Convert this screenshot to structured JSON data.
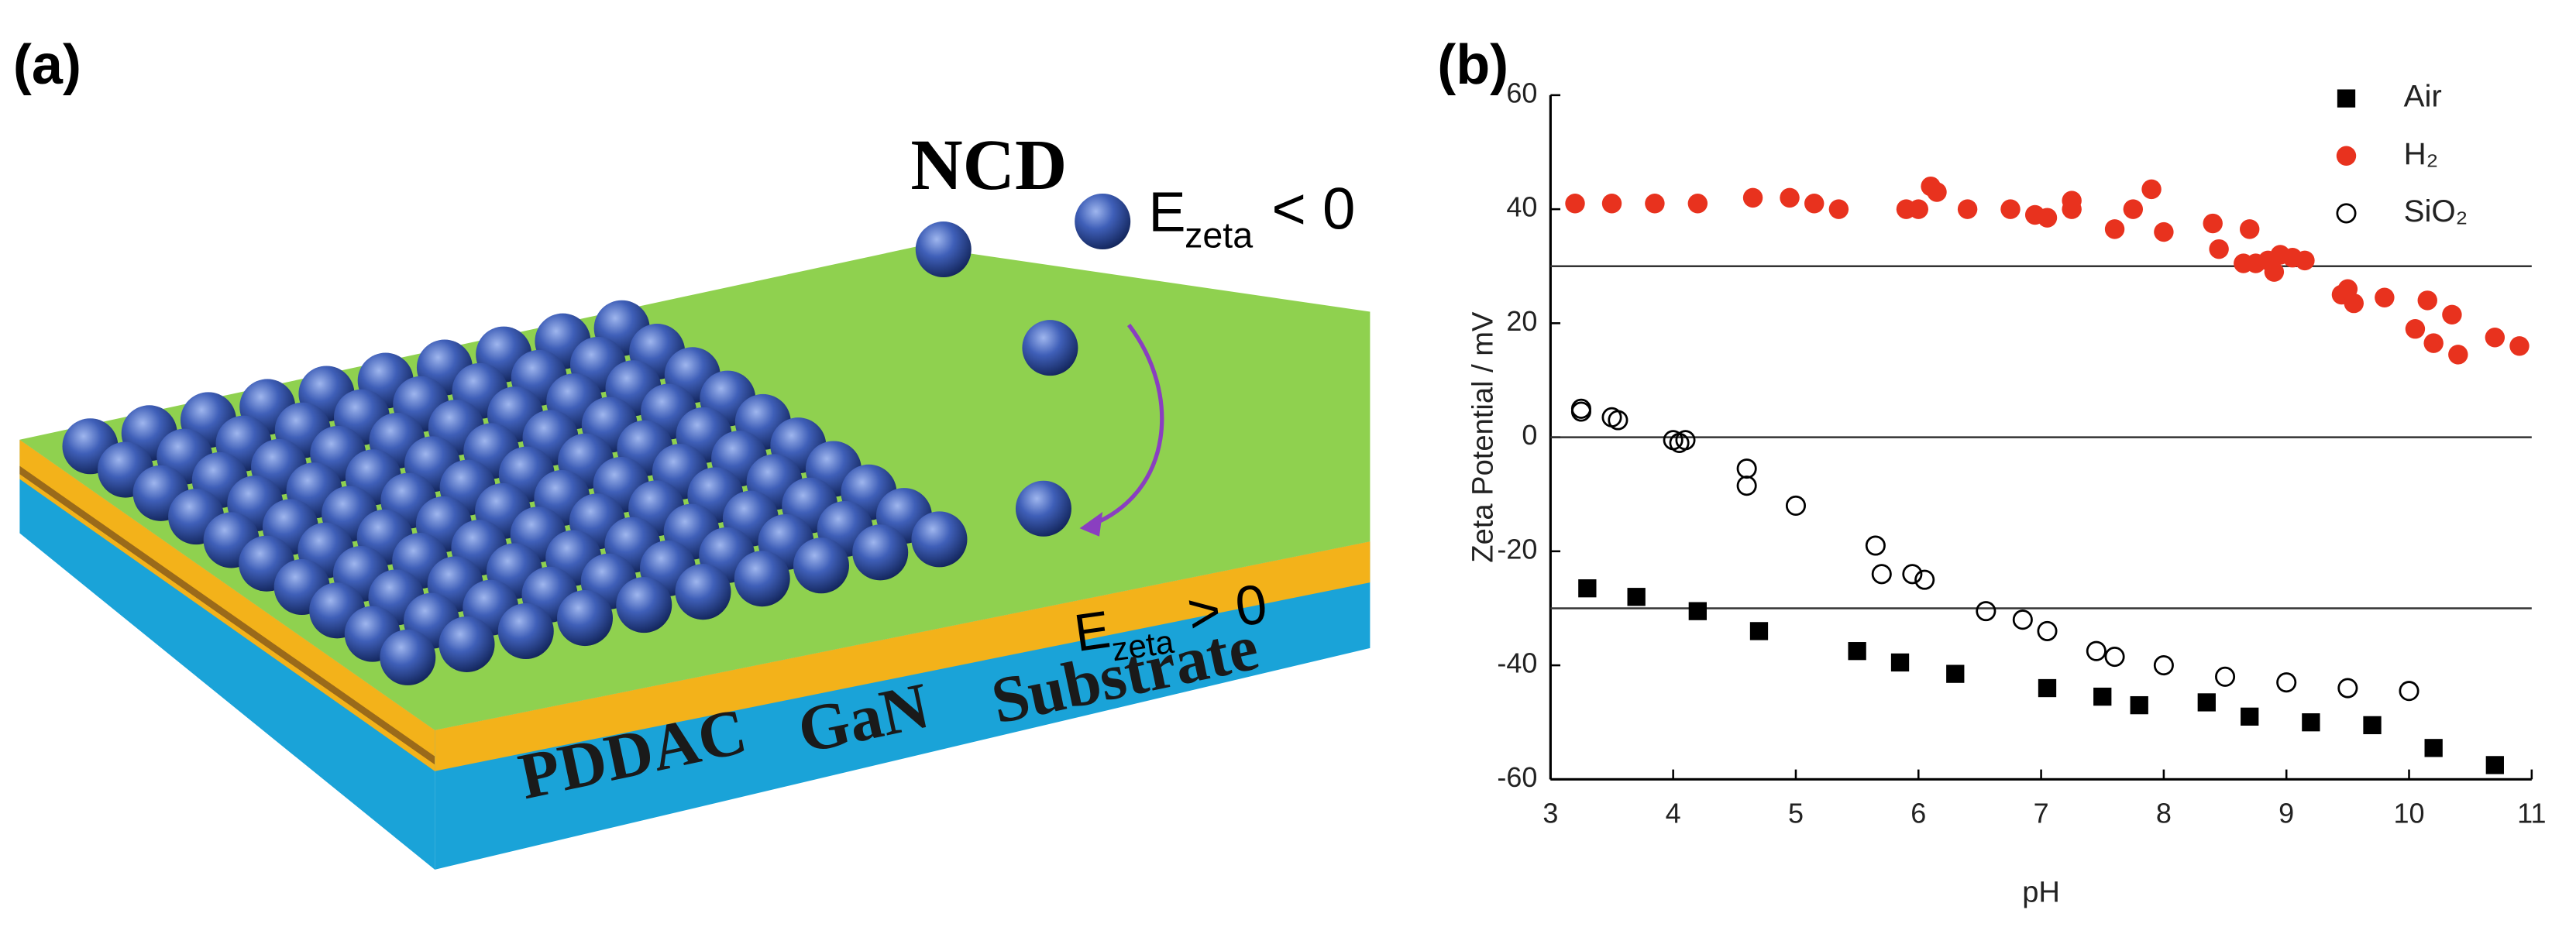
{
  "panel_labels": [
    "(a)",
    "(b)"
  ],
  "diagram": {
    "particle": "NCD",
    "particle_zeta": {
      "symbol": "E",
      "subscript": "zeta",
      "relation": "< 0"
    },
    "surface_zeta": {
      "symbol": "E",
      "subscript": "zeta",
      "relation": "> 0"
    },
    "layers": [
      "PDDAC",
      "GaN",
      "Substrate"
    ]
  },
  "chart_data": {
    "type": "scatter",
    "xlabel": "pH",
    "ylabel": "Zeta Potential / mV",
    "xlim": [
      3,
      11
    ],
    "xticks": [
      3,
      4,
      5,
      6,
      7,
      8,
      9,
      10,
      11
    ],
    "ylim": [
      -60,
      60
    ],
    "yticks": [
      -60,
      -40,
      -20,
      0,
      20,
      40,
      60
    ],
    "reference_lines": [
      30,
      0,
      -30
    ],
    "legend": "upper right",
    "series": [
      {
        "name": "Air",
        "color": "#000000",
        "marker": "square",
        "x": [
          3.3,
          3.7,
          4.2,
          4.7,
          5.5,
          5.85,
          6.3,
          7.05,
          7.5,
          7.8,
          8.35,
          8.7,
          9.2,
          9.7,
          10.2,
          10.7
        ],
        "values": [
          -26.5,
          -28,
          -30.5,
          -34,
          -37.5,
          -39.5,
          -41.5,
          -44,
          -45.5,
          -47,
          -46.5,
          -49,
          -50,
          -50.5,
          -54.5,
          -57.5
        ]
      },
      {
        "name": "H₂",
        "color": "#e8321e",
        "marker": "circle",
        "x": [
          3.2,
          3.5,
          3.85,
          4.2,
          4.65,
          4.95,
          5.15,
          5.35,
          5.9,
          6.0,
          6.1,
          6.15,
          6.4,
          6.75,
          6.95,
          7.05,
          7.25,
          7.25,
          7.6,
          7.75,
          7.9,
          8.0,
          8.4,
          8.45,
          8.65,
          8.7,
          8.75,
          8.85,
          8.9,
          8.95,
          9.05,
          9.15,
          9.45,
          9.5,
          9.55,
          9.8,
          10.05,
          10.15,
          10.2,
          10.35,
          10.4,
          10.7,
          10.9
        ],
        "values": [
          41,
          41,
          41,
          41,
          42,
          42,
          41,
          40,
          40,
          40,
          44,
          43,
          40,
          40,
          39,
          38.5,
          40,
          41.5,
          36.5,
          40,
          43.5,
          36,
          37.5,
          33,
          30.5,
          36.5,
          30.5,
          31,
          29,
          32,
          31.5,
          31,
          25,
          26,
          23.5,
          24.5,
          19,
          24,
          16.5,
          21.5,
          14.5,
          17.5,
          16
        ]
      },
      {
        "name": "SiO₂",
        "color": "#000000",
        "marker": "open-circle",
        "x": [
          3.25,
          3.25,
          3.5,
          3.55,
          4.0,
          4.05,
          4.1,
          4.6,
          4.6,
          5.0,
          5.65,
          5.7,
          5.95,
          6.05,
          6.55,
          6.85,
          7.05,
          7.45,
          7.6,
          8.0,
          8.5,
          9.0,
          9.5,
          10.0
        ],
        "values": [
          5,
          4.5,
          3.5,
          3,
          -0.5,
          -1,
          -0.5,
          -5.5,
          -8.5,
          -12,
          -19,
          -24,
          -24,
          -25,
          -30.5,
          -32,
          -34,
          -37.5,
          -38.5,
          -40,
          -42,
          -43,
          -44,
          -44.5
        ]
      }
    ]
  }
}
